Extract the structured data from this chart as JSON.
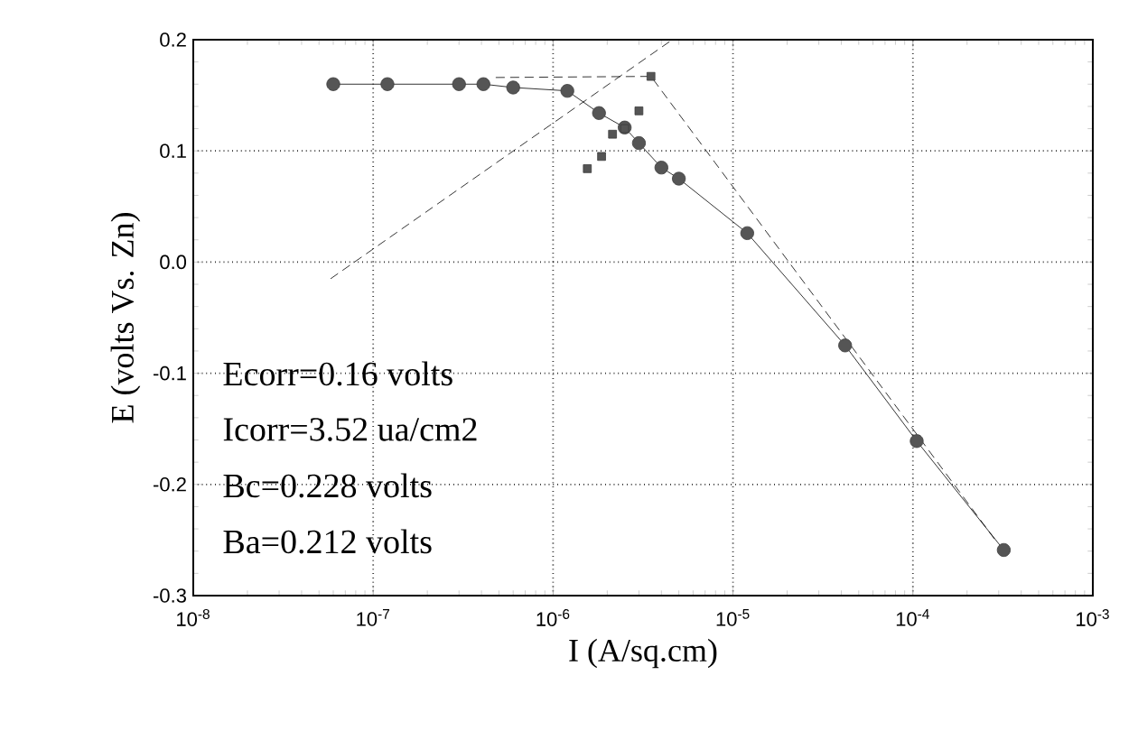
{
  "chart_data": {
    "type": "line",
    "xlabel": "I (A/sq.cm)",
    "ylabel": "E (volts Vs. Zn)",
    "log": "x",
    "grid": true,
    "xlim": [
      1e-08,
      0.001
    ],
    "xticks": [
      {
        "value": 1e-08,
        "label": "10$^{-8}$"
      },
      {
        "value": 1e-07,
        "label": "10$^{-7}$"
      },
      {
        "value": 1e-06,
        "label": "10$^{-6}$"
      },
      {
        "value": 1e-05,
        "label": "10$^{-5}$"
      },
      {
        "value": 0.0001,
        "label": "10$^{-4}$"
      },
      {
        "value": 0.001,
        "label": "10$^{-3}$"
      }
    ],
    "ylim": [
      -0.3,
      0.2
    ],
    "yticks": [
      {
        "value": -0.3,
        "label": "-0.3"
      },
      {
        "value": -0.2,
        "label": "-0.2"
      },
      {
        "value": -0.1,
        "label": "-0.1"
      },
      {
        "value": 0,
        "label": "0.0"
      },
      {
        "value": 0.1,
        "label": "0.1"
      },
      {
        "value": 0.2,
        "label": "0.2"
      }
    ],
    "series": [
      {
        "color": "#555555",
        "marker": "circle",
        "line_style": "solid",
        "x": [
          6e-08,
          1.2e-07,
          3e-07,
          4.1e-07,
          6e-07,
          1.2e-06,
          1.8e-06,
          2.5e-06,
          3e-06,
          4e-06,
          5e-06,
          1.2e-05,
          4.2e-05,
          0.000105,
          0.00032
        ],
        "values": [
          0.16,
          0.16,
          0.16,
          0.16,
          0.157,
          0.154,
          0.134,
          0.121,
          0.107,
          0.085,
          0.075,
          0.026,
          -0.075,
          -0.161,
          -0.259
        ]
      },
      {
        "type": "scatter",
        "color": "#555555",
        "marker": "square",
        "x": [
          1.55e-06,
          1.86e-06,
          2.14e-06,
          2.5e-06,
          3e-06,
          3.5e-06
        ],
        "values": [
          0.084,
          0.095,
          0.115,
          0.12,
          0.136,
          0.167
        ]
      },
      {
        "color": "#000000",
        "marker": "none",
        "line_style": "dashed",
        "x": [
          4.8e-07,
          3.5e-06,
          0.00029
        ],
        "values": [
          0.166,
          0.167,
          -0.251
        ]
      },
      {
        "color": "#000000",
        "marker": "none",
        "line_style": "dashed",
        "x": [
          5.8e-08,
          4.6e-06
        ],
        "values": [
          -0.015,
          0.2
        ]
      }
    ],
    "annotations": [
      "Ecorr=0.16 volts",
      "Icorr=3.52 ua/cm2",
      "Bc=0.228 volts",
      "Ba=0.212 volts"
    ]
  }
}
